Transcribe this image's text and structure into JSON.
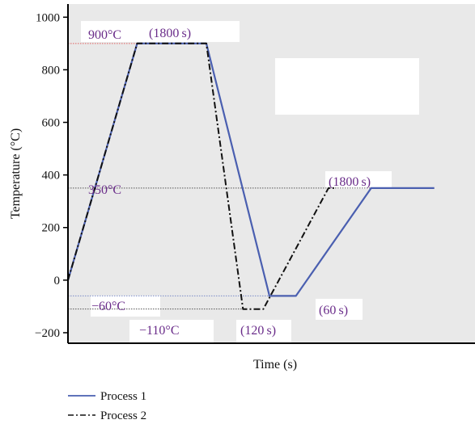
{
  "chart_data": {
    "type": "line",
    "title": "",
    "xlabel": "Time (s)",
    "ylabel": "Temperature (°C)",
    "ylim": [
      -240,
      1050
    ],
    "yticks": [
      -200,
      0,
      200,
      400,
      600,
      800,
      1000
    ],
    "ytick_labels": [
      "−200",
      "0",
      "200",
      "400",
      "600",
      "800",
      "1000"
    ],
    "x_axis_ticks": false,
    "series": [
      {
        "name": "Process 1",
        "color": "#4a5fb0",
        "style": "solid",
        "points": [
          [
            0,
            0
          ],
          [
            0.17,
            900
          ],
          [
            0.34,
            900
          ],
          [
            0.495,
            -60
          ],
          [
            0.56,
            -60
          ],
          [
            0.745,
            350
          ],
          [
            0.9,
            350
          ]
        ]
      },
      {
        "name": "Process 2",
        "color": "#111111",
        "style": "dashdot",
        "points": [
          [
            0,
            0
          ],
          [
            0.17,
            900
          ],
          [
            0.34,
            900
          ],
          [
            0.43,
            -110
          ],
          [
            0.48,
            -110
          ],
          [
            0.64,
            350
          ],
          [
            0.66,
            350
          ]
        ]
      }
    ],
    "reference_lines": [
      {
        "y": 900,
        "color": "#e06060"
      },
      {
        "y": 350,
        "color": "#555555"
      },
      {
        "y": -60,
        "color": "#7a8ac8"
      },
      {
        "y": -110,
        "color": "#555555"
      }
    ],
    "annotations": [
      {
        "text": "900°C"
      },
      {
        "text": "(1800 s)"
      },
      {
        "text": "350°C"
      },
      {
        "text": "(1800 s)"
      },
      {
        "text": "−60°C"
      },
      {
        "text": "(60 s)"
      },
      {
        "text": "−110°C"
      },
      {
        "text": "(120 s)"
      }
    ],
    "legend": {
      "placement": "bottom-left",
      "entries": [
        "Process 1",
        "Process 2"
      ]
    }
  }
}
